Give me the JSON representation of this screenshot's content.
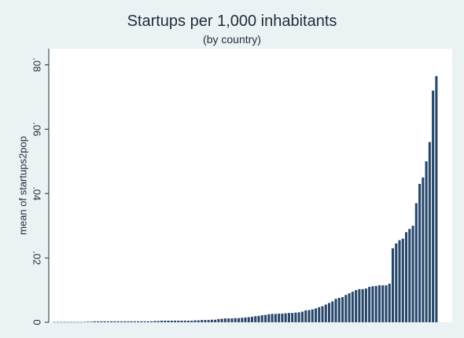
{
  "chart_data": {
    "type": "bar",
    "title": "Startups per 1,000 inhabitants",
    "subtitle": "(by country)",
    "xlabel": "",
    "ylabel": "mean of startups2pop",
    "ylim": [
      0,
      0.085
    ],
    "yticks": [
      {
        "value": 0,
        "label": "0"
      },
      {
        "value": 0.02,
        "label": ".02"
      },
      {
        "value": 0.04,
        "label": ".04"
      },
      {
        "value": 0.06,
        "label": ".06"
      },
      {
        "value": 0.08,
        "label": ".08"
      }
    ],
    "grid": false,
    "bar_color": "#27476b",
    "plot_background": "#ffffff",
    "outer_background": "#eaf2f3",
    "values": [
      0.0001,
      0.0001,
      0.0001,
      0.0001,
      0.0001,
      0.0001,
      0.0001,
      0.0001,
      0.0001,
      0.0001,
      0.0002,
      0.0002,
      0.0003,
      0.0003,
      0.0003,
      0.0003,
      0.0003,
      0.0003,
      0.0003,
      0.0003,
      0.0003,
      0.0003,
      0.0003,
      0.0003,
      0.0003,
      0.0003,
      0.0003,
      0.0003,
      0.0003,
      0.0003,
      0.0004,
      0.0004,
      0.0005,
      0.0005,
      0.0005,
      0.0005,
      0.0005,
      0.0005,
      0.0005,
      0.0005,
      0.0005,
      0.0005,
      0.0006,
      0.0006,
      0.0007,
      0.0007,
      0.0007,
      0.0008,
      0.0008,
      0.001,
      0.0011,
      0.0012,
      0.0012,
      0.0012,
      0.0013,
      0.0013,
      0.0014,
      0.0015,
      0.0016,
      0.0017,
      0.0019,
      0.002,
      0.0022,
      0.0023,
      0.0025,
      0.0026,
      0.0026,
      0.0027,
      0.0027,
      0.0028,
      0.0029,
      0.0029,
      0.003,
      0.0031,
      0.0033,
      0.0037,
      0.0038,
      0.004,
      0.0043,
      0.0047,
      0.005,
      0.0055,
      0.006,
      0.0065,
      0.0073,
      0.0076,
      0.0078,
      0.0085,
      0.009,
      0.0095,
      0.01,
      0.0103,
      0.0103,
      0.0105,
      0.011,
      0.0112,
      0.0113,
      0.0115,
      0.0115,
      0.0115,
      0.012,
      0.023,
      0.0245,
      0.0255,
      0.026,
      0.028,
      0.029,
      0.03,
      0.037,
      0.043,
      0.045,
      0.05,
      0.056,
      0.072,
      0.0765
    ]
  }
}
